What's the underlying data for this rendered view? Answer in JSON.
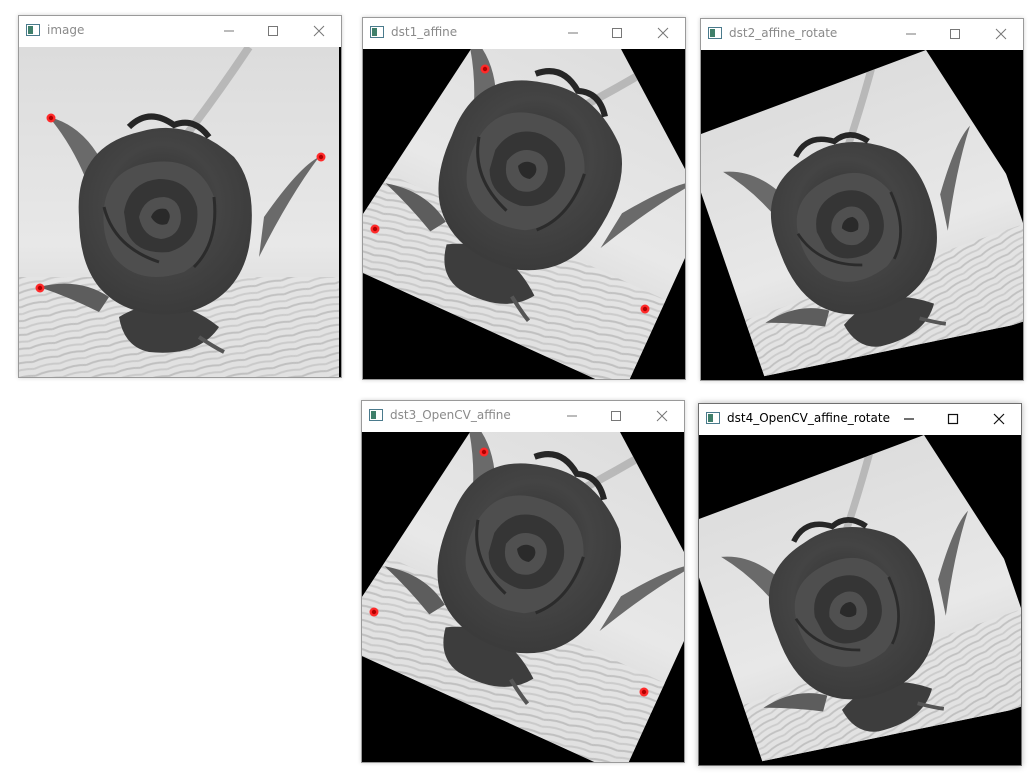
{
  "windows": [
    {
      "id": "image",
      "title": "image",
      "active": false
    },
    {
      "id": "dst1",
      "title": "dst1_affine",
      "active": false
    },
    {
      "id": "dst2",
      "title": "dst2_affine_rotate",
      "active": false
    },
    {
      "id": "dst3",
      "title": "dst3_OpenCV_affine",
      "active": false
    },
    {
      "id": "dst4",
      "title": "dst4_OpenCV_affine_rotate",
      "active": true
    }
  ],
  "icons": {
    "app": "opencv-window-icon",
    "minimize": "minimize-icon",
    "maximize": "maximize-icon",
    "close": "close-icon"
  },
  "colors": {
    "marker": "#ff0000",
    "background": "#000000",
    "title_inactive": "#8a8a8a",
    "title_active": "#000000"
  }
}
